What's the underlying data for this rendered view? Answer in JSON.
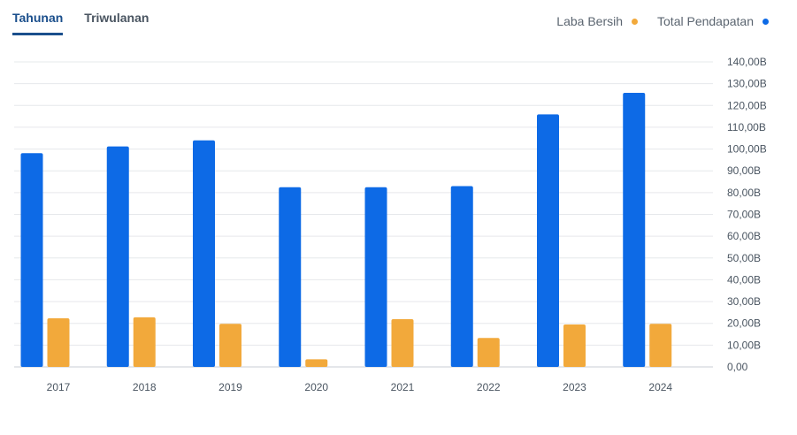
{
  "tabs": [
    {
      "label": "Tahunan",
      "active": true
    },
    {
      "label": "Triwulanan",
      "active": false
    }
  ],
  "legend": [
    {
      "label": "Laba Bersih",
      "color": "#f2a93b"
    },
    {
      "label": "Total Pendapatan",
      "color": "#0d6ae6"
    }
  ],
  "chart_data": {
    "type": "bar",
    "categories": [
      "2017",
      "2018",
      "2019",
      "2020",
      "2021",
      "2022",
      "2023",
      "2024"
    ],
    "series": [
      {
        "name": "Total Pendapatan",
        "color": "#0d6ae6",
        "values": [
          98.1,
          101.2,
          104.0,
          82.5,
          82.5,
          83.0,
          115.9,
          125.8
        ]
      },
      {
        "name": "Laba Bersih",
        "color": "#f2a93b",
        "values": [
          22.3,
          22.8,
          19.8,
          3.5,
          21.9,
          13.3,
          19.5,
          19.8
        ]
      }
    ],
    "unit": "B",
    "ylim": [
      0,
      140
    ],
    "yticks": [
      "0,00",
      "10,00B",
      "20,00B",
      "30,00B",
      "40,00B",
      "50,00B",
      "60,00B",
      "70,00B",
      "80,00B",
      "90,00B",
      "100,00B",
      "110,00B",
      "120,00B",
      "130,00B",
      "140,00B"
    ],
    "ytick_values": [
      0,
      10,
      20,
      30,
      40,
      50,
      60,
      70,
      80,
      90,
      100,
      110,
      120,
      130,
      140
    ],
    "grid": true,
    "legend_position": "top-right"
  }
}
